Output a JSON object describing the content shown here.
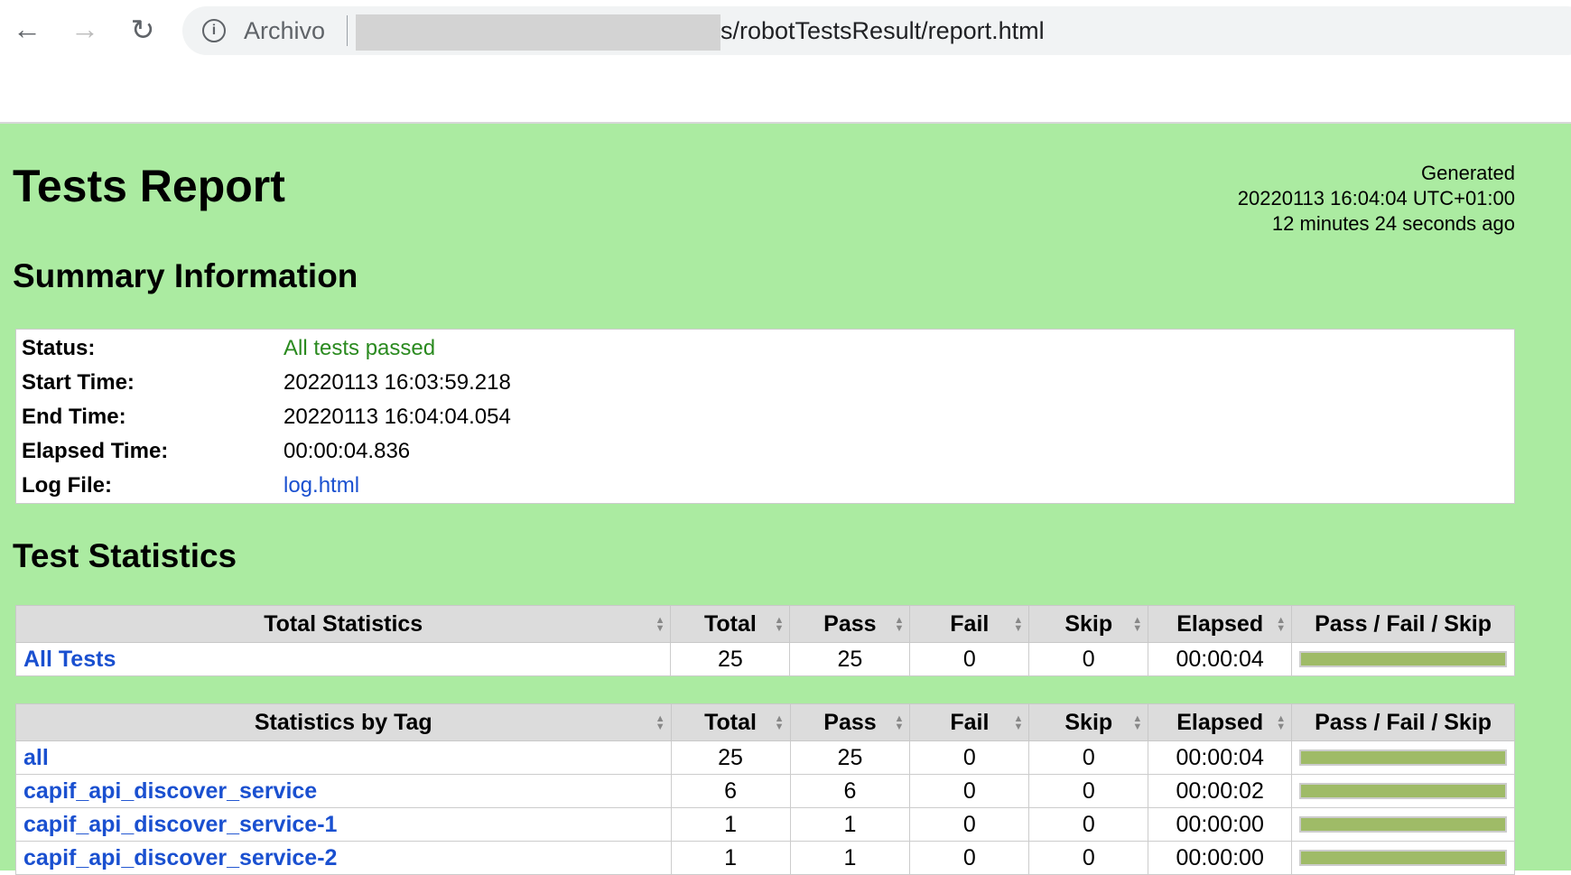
{
  "browser": {
    "back_icon": "arrow-left-icon",
    "forward_icon": "arrow-right-icon",
    "reload_icon": "reload-icon",
    "info_icon": "info-icon",
    "scheme_label": "Archivo",
    "url_visible": "s/robotTestsResult/report.html"
  },
  "report": {
    "title": "Tests Report",
    "generated": {
      "label": "Generated",
      "timestamp": "20220113 16:04:04 UTC+01:00",
      "ago": "12 minutes 24 seconds ago"
    },
    "summary_heading": "Summary Information",
    "summary": [
      {
        "key": "Status:",
        "value": "All tests passed"
      },
      {
        "key": "Start Time:",
        "value": "20220113 16:03:59.218"
      },
      {
        "key": "End Time:",
        "value": "20220113 16:04:04.054"
      },
      {
        "key": "Elapsed Time:",
        "value": "00:00:04.836"
      },
      {
        "key": "Log File:",
        "value": "log.html"
      }
    ],
    "stats_heading": "Test Statistics",
    "columns": [
      "Total",
      "Pass",
      "Fail",
      "Skip",
      "Elapsed",
      "Pass / Fail / Skip"
    ],
    "colors": {
      "background": "#abeba1",
      "pass_bar": "#9fbb67",
      "status_pass": "#2a8a1f",
      "link": "#1a50d0"
    },
    "total_stats": {
      "header": "Total Statistics",
      "rows": [
        {
          "name": "All Tests",
          "total": "25",
          "pass": "25",
          "fail": "0",
          "skip": "0",
          "elapsed": "00:00:04",
          "pass_fraction": 1
        }
      ]
    },
    "tag_stats": {
      "header": "Statistics by Tag",
      "rows": [
        {
          "name": "all",
          "total": "25",
          "pass": "25",
          "fail": "0",
          "skip": "0",
          "elapsed": "00:00:04",
          "pass_fraction": 1
        },
        {
          "name": "capif_api_discover_service",
          "total": "6",
          "pass": "6",
          "fail": "0",
          "skip": "0",
          "elapsed": "00:00:02",
          "pass_fraction": 1
        },
        {
          "name": "capif_api_discover_service-1",
          "total": "1",
          "pass": "1",
          "fail": "0",
          "skip": "0",
          "elapsed": "00:00:00",
          "pass_fraction": 1
        },
        {
          "name": "capif_api_discover_service-2",
          "total": "1",
          "pass": "1",
          "fail": "0",
          "skip": "0",
          "elapsed": "00:00:00",
          "pass_fraction": 1
        }
      ]
    }
  }
}
